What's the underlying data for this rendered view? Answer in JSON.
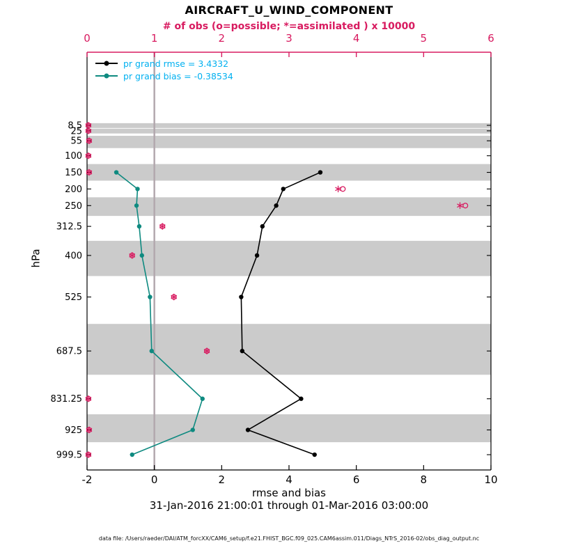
{
  "header": {
    "title": "AIRCRAFT_U_WIND_COMPONENT",
    "subtitle": "# of obs (o=possible; *=assimilated ) x 10000"
  },
  "legend": {
    "entries": [
      {
        "series": "rmse",
        "label": "pr grand rmse = 3.4332"
      },
      {
        "series": "bias",
        "label": "pr grand bias = -0.38534"
      }
    ]
  },
  "axes": {
    "x_label": "rmse and bias",
    "y_label": "hPa"
  },
  "footer": {
    "date_range": "31-Jan-2016 21:00:01 through 01-Mar-2016 03:00:00",
    "data_file": "data file: /Users/raeder/DAI/ATM_forcXX/CAM6_setup/f.e21.FHIST_BGC.f09_025.CAM6assim.011/Diags_NTrS_2016-02/obs_diag_output.nc"
  },
  "colors": {
    "magenta": "#d81b60",
    "teal": "#0e8a80",
    "cyan_legend_text": "#00b0f0",
    "band_gray": "#cbcbcb",
    "zero_line": "#b3a8ae",
    "black": "#000000"
  },
  "chart_data": {
    "type": "line",
    "orientation": "vertical-profile",
    "title": "AIRCRAFT_U_WIND_COMPONENT",
    "ylim_hpa": [
      -211.5,
      1045.5
    ],
    "levels_hpa": [
      8.5,
      25,
      55,
      100,
      150,
      200,
      250,
      312.5,
      400,
      525,
      687.5,
      831.25,
      925,
      999.5
    ],
    "y_tick_labels": [
      "8.5",
      "25",
      "55",
      "100",
      "150",
      "200",
      "250",
      "312.5",
      "400",
      "525",
      "687.5",
      "831.25",
      "925",
      "999.5"
    ],
    "bottom_axis": {
      "label": "rmse and bias",
      "min": -2,
      "max": 10,
      "ticks": [
        -2,
        0,
        2,
        4,
        6,
        8,
        10
      ],
      "color": "black"
    },
    "top_axis": {
      "label": "# of obs (o=possible; *=assimilated ) x 10000",
      "min": 0,
      "max": 6,
      "ticks": [
        0,
        1,
        2,
        3,
        4,
        5,
        6
      ],
      "color": "magenta",
      "units_multiplier": 10000
    },
    "zero_line_x": 0,
    "shaded_bands_hpa": [
      [
        2,
        16.5
      ],
      [
        18.5,
        33
      ],
      [
        40,
        77
      ],
      [
        125,
        175
      ],
      [
        225,
        281
      ],
      [
        356,
        462
      ],
      [
        606,
        759
      ],
      [
        878,
        962
      ]
    ],
    "series": [
      {
        "name": "pr grand rmse",
        "grand_value": 3.4332,
        "axis": "bottom",
        "color": "#000000",
        "levels": [
          150,
          200,
          250,
          312.5,
          400,
          525,
          687.5,
          831.25,
          925,
          999.5
        ],
        "values": [
          4.93,
          3.83,
          3.62,
          3.21,
          3.05,
          2.58,
          2.61,
          4.36,
          2.78,
          4.76
        ]
      },
      {
        "name": "pr grand bias",
        "grand_value": -0.38534,
        "axis": "bottom",
        "color": "#0e8a80",
        "levels": [
          150,
          200,
          250,
          312.5,
          400,
          525,
          687.5,
          831.25,
          925,
          999.5
        ],
        "values": [
          -1.13,
          -0.5,
          -0.53,
          -0.45,
          -0.37,
          -0.13,
          -0.08,
          1.43,
          1.14,
          -0.66
        ]
      }
    ],
    "obs_counts": {
      "axis": "top",
      "levels": [
        8.5,
        25,
        55,
        100,
        150,
        200,
        250,
        312.5,
        400,
        525,
        687.5,
        831.25,
        925,
        999.5
      ],
      "possible_x10000": [
        0.02,
        0.02,
        0.03,
        0.02,
        0.03,
        3.8,
        5.62,
        1.12,
        0.67,
        1.29,
        1.78,
        0.02,
        0.03,
        0.02
      ],
      "assimilated_x10000": [
        0.02,
        0.02,
        0.03,
        0.02,
        0.03,
        3.73,
        5.54,
        1.12,
        0.67,
        1.29,
        1.78,
        0.02,
        0.03,
        0.02
      ]
    }
  }
}
